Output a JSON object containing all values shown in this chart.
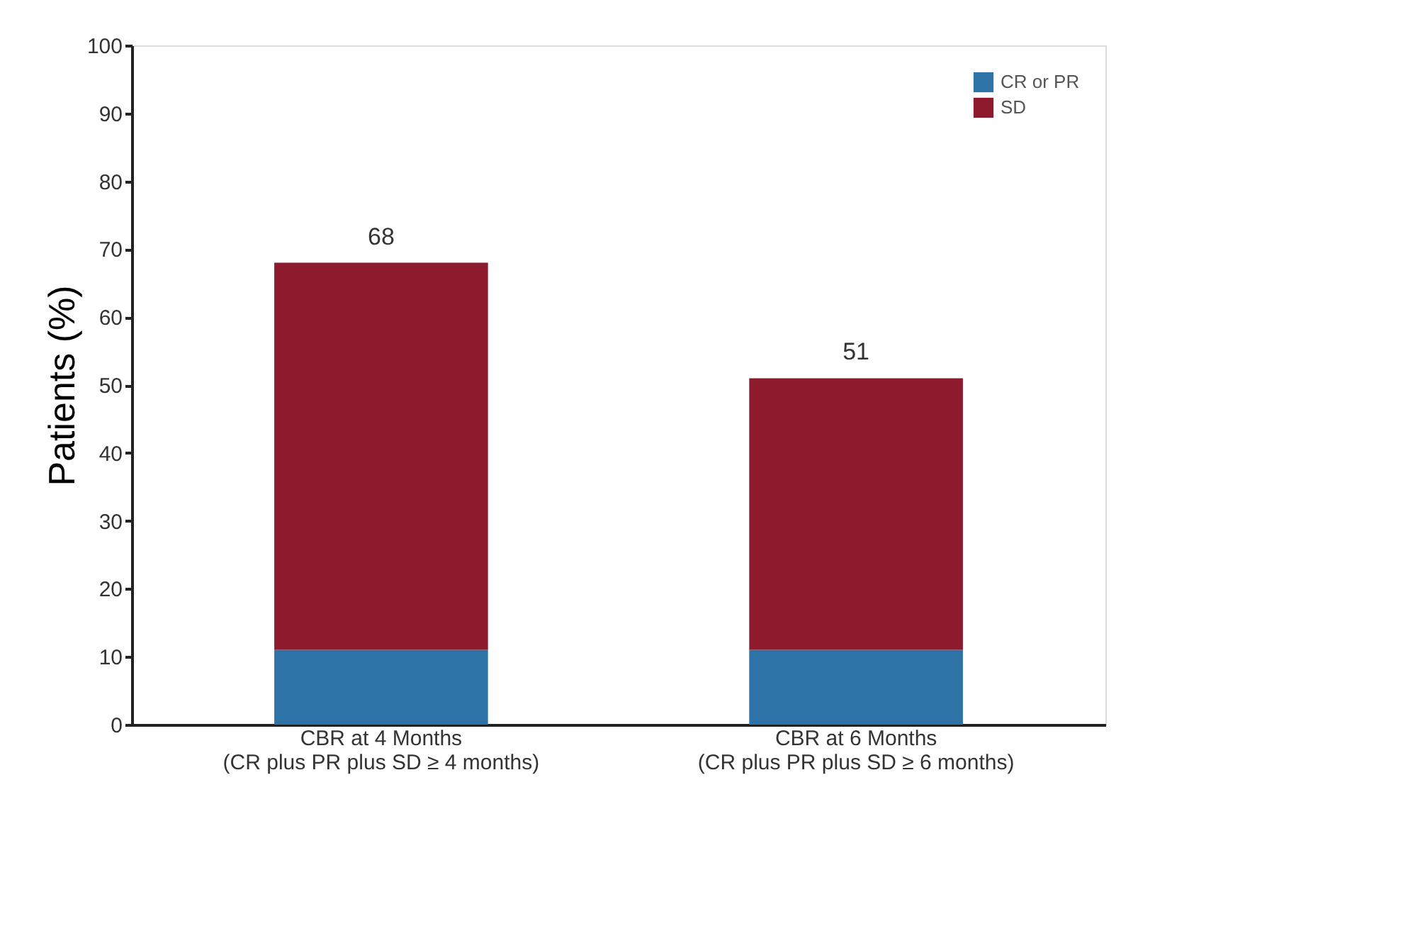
{
  "chart_data": {
    "type": "bar",
    "ylabel": "Patients (%)",
    "categories": [
      "CBR at 4 Months\n(CR plus PR plus SD ≥ 4 months)",
      "CBR at 6 Months\n(CR plus PR plus SD ≥ 6 months)"
    ],
    "series": [
      {
        "name": "CR or PR",
        "color": "#2e73a8",
        "values": [
          11,
          11
        ]
      },
      {
        "name": "SD",
        "color": "#8e1a2e",
        "values": [
          57,
          40
        ]
      }
    ],
    "stacked": true,
    "totals": [
      "68",
      "51"
    ],
    "ylim": [
      0,
      100
    ],
    "yticks": [
      0,
      10,
      20,
      30,
      40,
      50,
      60,
      70,
      80,
      90,
      100
    ],
    "grid": false,
    "legend": "top right"
  }
}
